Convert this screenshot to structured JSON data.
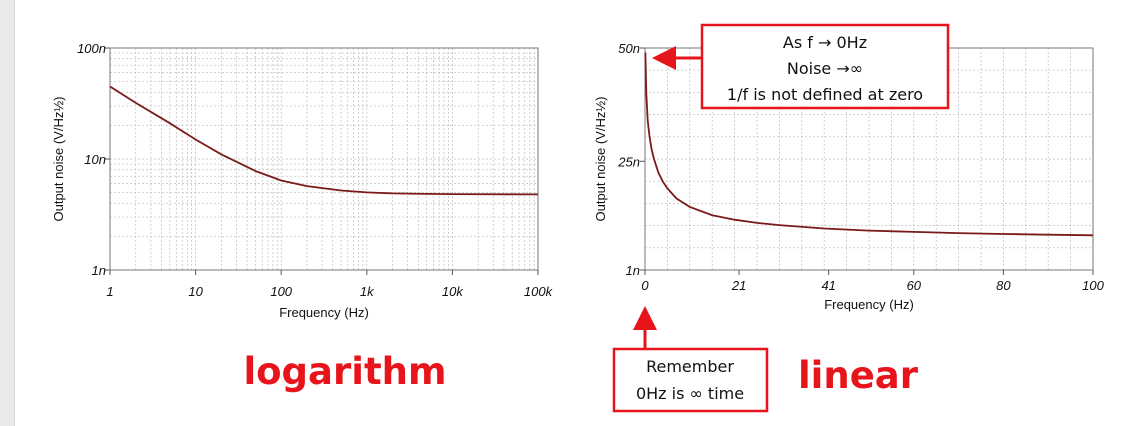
{
  "chart_data": [
    {
      "type": "line",
      "x_scale": "log",
      "y_scale": "log",
      "xlabel": "Frequency (Hz)",
      "ylabel": "Output noise (V/Hz½)",
      "xlim": [
        1,
        100000
      ],
      "ylim": [
        1e-09,
        1e-07
      ],
      "x_ticks": [
        "1",
        "10",
        "100",
        "1k",
        "10k",
        "100k"
      ],
      "y_ticks": [
        "1n",
        "10n",
        "100n"
      ],
      "grid": true,
      "line_color": "#7a1a1a",
      "series": [
        {
          "x": [
            1,
            2,
            5,
            10,
            20,
            50,
            100,
            200,
            500,
            1000,
            2000,
            5000,
            10000,
            100000
          ],
          "y": [
            4.5e-08,
            3.2e-08,
            2.1e-08,
            1.5e-08,
            1.1e-08,
            7.8e-09,
            6.4e-09,
            5.7e-09,
            5.2e-09,
            5e-09,
            4.9e-09,
            4.85e-09,
            4.83e-09,
            4.8e-09
          ]
        }
      ],
      "big_label": "logarithm"
    },
    {
      "type": "line",
      "x_scale": "linear",
      "y_scale": "linear",
      "xlabel": "Frequency (Hz)",
      "ylabel": "Output noise (V/Hz½)",
      "xlim": [
        0,
        100
      ],
      "ylim": [
        1,
        50
      ],
      "x_ticks": [
        "0",
        "21",
        "41",
        "60",
        "80",
        "100"
      ],
      "y_ticks": [
        "1n",
        "25n",
        "50n"
      ],
      "grid": true,
      "line_color": "#7a1a1a",
      "series": [
        {
          "x": [
            0.08,
            0.3,
            0.6,
            1,
            1.5,
            2,
            3,
            4,
            5,
            7,
            10,
            15,
            20,
            25,
            30,
            40,
            50,
            60,
            70,
            80,
            90,
            100
          ],
          "y": [
            49,
            40,
            34,
            30.5,
            27.5,
            25.5,
            22.5,
            20.5,
            19,
            16.8,
            14.9,
            13.1,
            12.1,
            11.4,
            10.9,
            10.15,
            9.7,
            9.4,
            9.15,
            8.95,
            8.8,
            8.65
          ]
        }
      ],
      "big_label": "linear"
    }
  ],
  "callouts": {
    "top": {
      "line1": "As f  → 0Hz",
      "line2": "Noise →∞",
      "line3": "1/f is not defined at zero"
    },
    "bottom": {
      "line1": "Remember",
      "line2": "0Hz is ∞ time"
    }
  },
  "colors": {
    "accent_red": "#e8141b",
    "curve": "#7a1a1a",
    "grid": "#bdbdbd"
  }
}
